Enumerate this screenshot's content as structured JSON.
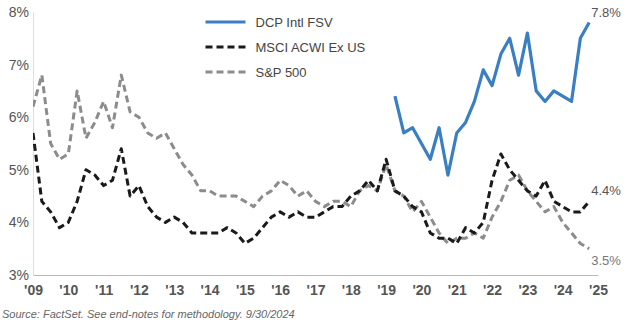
{
  "chart_data": {
    "type": "line",
    "source": "Source: FactSet. See end-notes for methodology. 9/30/2024",
    "legend": "upper center",
    "grid": false,
    "xlim": [
      2009,
      2025
    ],
    "xticks": [
      {
        "value": 2009,
        "label": "'09"
      },
      {
        "value": 2010,
        "label": "'10"
      },
      {
        "value": 2011,
        "label": "'11"
      },
      {
        "value": 2012,
        "label": "'12"
      },
      {
        "value": 2013,
        "label": "'13"
      },
      {
        "value": 2014,
        "label": "'14"
      },
      {
        "value": 2015,
        "label": "'15"
      },
      {
        "value": 2016,
        "label": "'16"
      },
      {
        "value": 2017,
        "label": "'17"
      },
      {
        "value": 2018,
        "label": "'18"
      },
      {
        "value": 2019,
        "label": "'19"
      },
      {
        "value": 2020,
        "label": "'20"
      },
      {
        "value": 2021,
        "label": "'21"
      },
      {
        "value": 2022,
        "label": "'22"
      },
      {
        "value": 2023,
        "label": "'23"
      },
      {
        "value": 2024,
        "label": "'24"
      },
      {
        "value": 2025,
        "label": "'25"
      }
    ],
    "ylim": [
      3,
      8
    ],
    "yticks": [
      {
        "value": 3,
        "label": "3%"
      },
      {
        "value": 4,
        "label": "4%"
      },
      {
        "value": 5,
        "label": "5%"
      },
      {
        "value": 6,
        "label": "6%"
      },
      {
        "value": 7,
        "label": "7%"
      },
      {
        "value": 8,
        "label": "8%"
      }
    ],
    "x": [
      2009,
      2009.25,
      2009.5,
      2009.75,
      2010,
      2010.25,
      2010.5,
      2010.75,
      2011,
      2011.25,
      2011.5,
      2011.75,
      2012,
      2012.25,
      2012.5,
      2012.75,
      2013,
      2013.25,
      2013.5,
      2013.75,
      2014,
      2014.25,
      2014.5,
      2014.75,
      2015,
      2015.25,
      2015.5,
      2015.75,
      2016,
      2016.25,
      2016.5,
      2016.75,
      2017,
      2017.25,
      2017.5,
      2017.75,
      2018,
      2018.25,
      2018.5,
      2018.75,
      2019,
      2019.25,
      2019.5,
      2019.75,
      2020,
      2020.25,
      2020.5,
      2020.75,
      2021,
      2021.25,
      2021.5,
      2021.75,
      2022,
      2022.25,
      2022.5,
      2022.75,
      2023,
      2023.25,
      2023.5,
      2023.75,
      2024,
      2024.25,
      2024.5,
      2024.75
    ],
    "series": [
      {
        "name": "DCP Intl FSV",
        "color": "#3a7fc1",
        "line_style": "solid",
        "end_label": "7.8%",
        "values": [
          null,
          null,
          null,
          null,
          null,
          null,
          null,
          null,
          null,
          null,
          null,
          null,
          null,
          null,
          null,
          null,
          null,
          null,
          null,
          null,
          null,
          null,
          null,
          null,
          null,
          null,
          null,
          null,
          null,
          null,
          null,
          null,
          null,
          null,
          null,
          null,
          null,
          null,
          null,
          null,
          null,
          6.4,
          5.7,
          5.8,
          5.5,
          5.2,
          5.8,
          4.9,
          5.7,
          5.9,
          6.3,
          6.9,
          6.6,
          7.2,
          7.5,
          6.8,
          7.6,
          6.5,
          6.3,
          6.5,
          6.4,
          6.3,
          7.5,
          7.8
        ]
      },
      {
        "name": "MSCI ACWI Ex US",
        "color": "#1a1a1a",
        "line_style": "dashed",
        "end_label": "4.4%",
        "values": [
          5.7,
          4.4,
          4.2,
          3.9,
          4.0,
          4.4,
          5.0,
          4.9,
          4.7,
          4.8,
          5.4,
          4.5,
          4.7,
          4.3,
          4.1,
          4.0,
          4.1,
          4.0,
          3.8,
          3.8,
          3.8,
          3.8,
          3.9,
          3.8,
          3.6,
          3.7,
          3.9,
          4.1,
          4.2,
          4.1,
          4.2,
          4.1,
          4.1,
          4.2,
          4.3,
          4.3,
          4.5,
          4.6,
          4.8,
          4.6,
          5.2,
          4.6,
          4.5,
          4.3,
          4.2,
          3.8,
          3.7,
          3.7,
          3.6,
          3.9,
          3.8,
          4.0,
          4.8,
          5.3,
          5.0,
          4.8,
          4.6,
          4.5,
          4.8,
          4.4,
          4.3,
          4.2,
          4.2,
          4.4
        ]
      },
      {
        "name": "S&P 500",
        "color": "#8c8c8c",
        "line_style": "dashed",
        "end_label": "3.5%",
        "values": [
          6.2,
          6.8,
          5.5,
          5.2,
          5.3,
          6.5,
          5.6,
          5.9,
          6.3,
          5.8,
          6.8,
          6.1,
          6.0,
          5.7,
          5.6,
          5.7,
          5.4,
          5.1,
          4.9,
          4.6,
          4.6,
          4.5,
          4.5,
          4.5,
          4.4,
          4.3,
          4.5,
          4.6,
          4.8,
          4.7,
          4.5,
          4.6,
          4.4,
          4.3,
          4.4,
          4.4,
          4.3,
          4.6,
          4.7,
          4.6,
          5.1,
          4.6,
          4.5,
          4.2,
          4.4,
          4.1,
          3.8,
          3.6,
          3.7,
          3.7,
          3.8,
          3.7,
          4.1,
          4.4,
          4.8,
          4.9,
          4.6,
          4.4,
          4.2,
          4.3,
          4.0,
          3.8,
          3.6,
          3.5
        ]
      }
    ]
  }
}
